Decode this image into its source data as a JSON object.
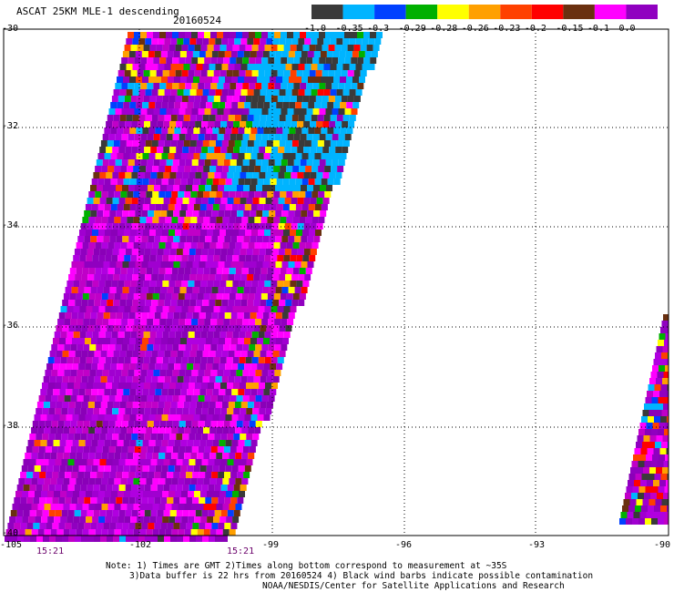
{
  "header": {
    "title": "ASCAT 25KM MLE-1 descending",
    "date": "20160524"
  },
  "colorbar": {
    "colors": [
      "#3a3a3a",
      "#00b4ff",
      "#0040ff",
      "#00b000",
      "#ffff00",
      "#ffa000",
      "#ff4000",
      "#ff0000",
      "#6a3010",
      "#ff00ff",
      "#9000c0"
    ],
    "tick_labels": [
      "-1.0",
      "-0.35",
      "-0.3",
      "-0.29",
      "-0.28",
      "-0.26",
      "-0.23",
      "-0.2",
      "-0.15",
      "-0.1",
      "0.0"
    ]
  },
  "axes": {
    "lat_labels": [
      "-30",
      "-32",
      "-34",
      "-36",
      "-38",
      "-40"
    ],
    "lon_labels": [
      "-105",
      "-102",
      "-99",
      "-96",
      "-93",
      "-90"
    ],
    "lat_range": [
      -40,
      -30
    ],
    "lon_range": [
      -105,
      -90
    ],
    "grid": "dotted"
  },
  "times": [
    "15:21",
    "15:21"
  ],
  "notes": [
    "Note: 1) Times are GMT 2)Times along bottom correspond to measurement at ~35S",
    "3)Data buffer is 22 hrs from 20160524 4) Black wind barbs indicate possible contamination",
    "NOAA/NESDIS/Center for Satellite Applications and Research"
  ]
}
